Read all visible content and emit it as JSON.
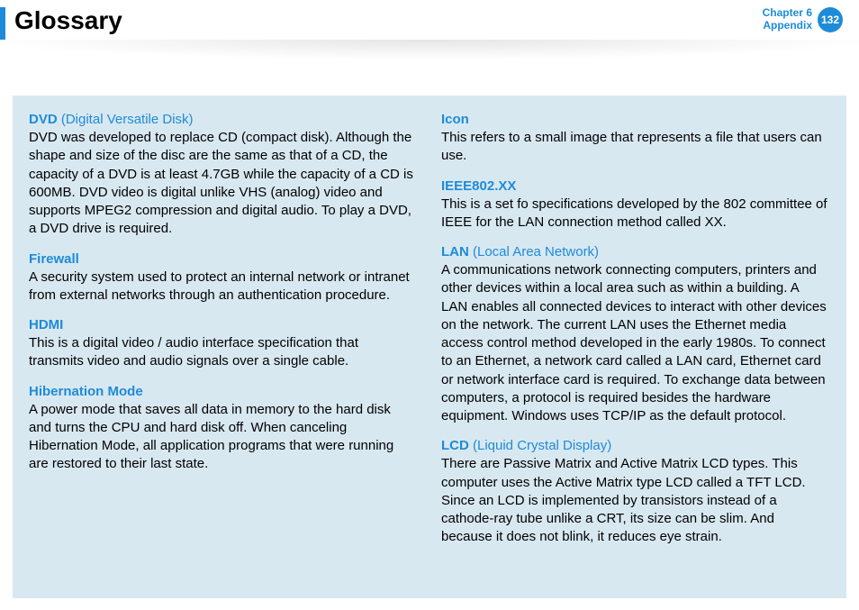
{
  "header": {
    "title": "Glossary",
    "chapter_line1": "Chapter 6",
    "chapter_line2": "Appendix",
    "page_number": "132"
  },
  "colors": {
    "accent_blue": "#1e8bd8",
    "content_bg": "#d8e8f1",
    "text_black": "#000000",
    "page_bg": "#ffffff"
  },
  "left": [
    {
      "term": "DVD",
      "expansion": "(Digital Versatile Disk)",
      "def": "DVD was developed to replace CD (compact disk). Although the shape and size of the disc are the same as that of a CD, the capacity of a DVD is at least 4.7GB while the capacity of a CD is 600MB. DVD video is digital unlike VHS (analog) video and supports MPEG2 compression and digital audio. To play a DVD, a DVD drive is required."
    },
    {
      "term": "Firewall",
      "expansion": "",
      "def": "A security system used to protect an internal network or intranet from external networks through an authentication procedure."
    },
    {
      "term": "HDMI",
      "expansion": "",
      "def": "This is a digital video / audio interface specification that transmits video and audio signals over a single cable."
    },
    {
      "term": "Hibernation Mode",
      "expansion": "",
      "def": "A power mode that saves all data in memory to the hard disk and turns the CPU and hard disk off. When canceling Hibernation Mode, all application programs that were running are restored to their last state."
    }
  ],
  "right": [
    {
      "term": "Icon",
      "expansion": "",
      "def": "This refers to a small image that represents a file that users can use."
    },
    {
      "term": "IEEE802.XX",
      "expansion": "",
      "def": "This is a set fo specifications developed by the 802 committee of IEEE for the LAN connection method called XX."
    },
    {
      "term": "LAN",
      "expansion": "(Local Area Network)",
      "def": "A communications network connecting computers, printers and other devices within a local area such as within a building. A LAN enables all connected devices to interact with other devices on the network. The current LAN uses the Ethernet media access control method developed in the early 1980s. To connect to an Ethernet, a network card called a LAN card, Ethernet card or network interface card is required. To exchange data between computers, a protocol is required besides the hardware equipment. Windows uses TCP/IP as the default protocol."
    },
    {
      "term": "LCD",
      "expansion": "(Liquid Crystal Display)",
      "def": "There are Passive Matrix and Active Matrix LCD types. This computer uses the Active Matrix type LCD called a TFT LCD. Since an LCD is implemented by transistors instead of a cathode-ray tube unlike a CRT, its size can be slim. And because it does not blink, it reduces eye strain."
    }
  ]
}
